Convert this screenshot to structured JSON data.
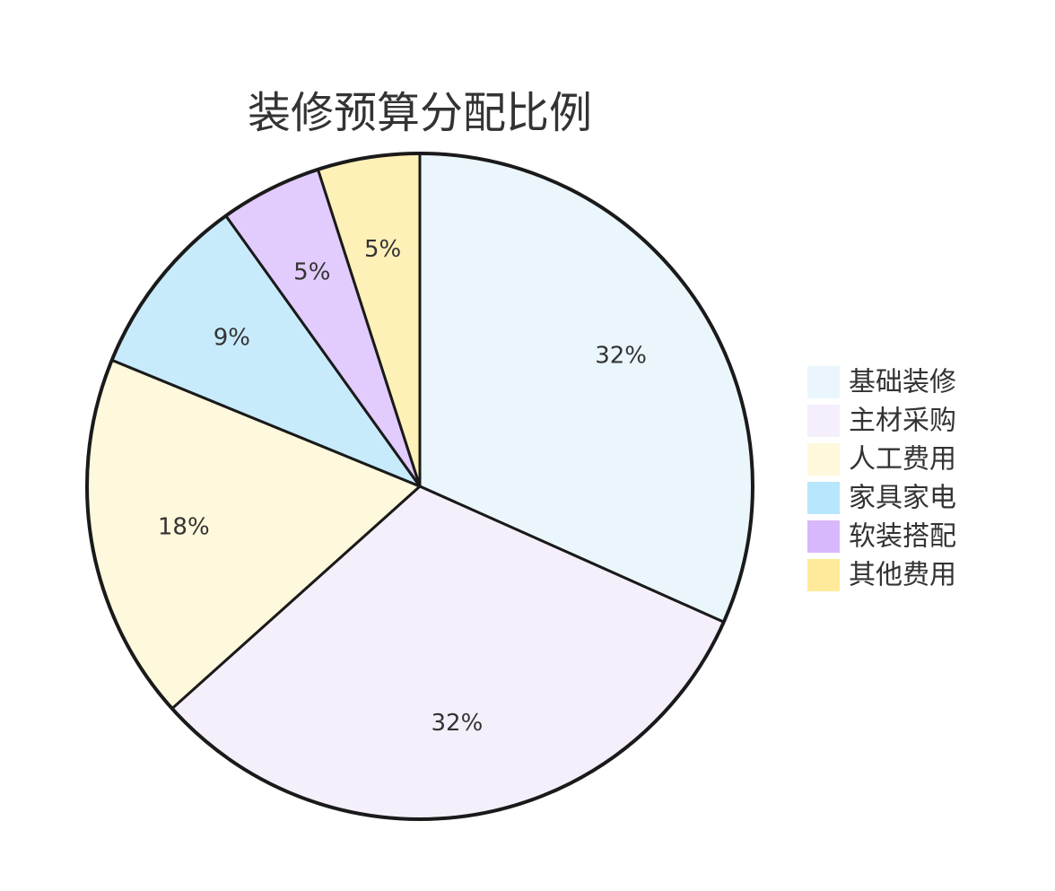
{
  "chart_data": {
    "type": "pie",
    "title": "装修预算分配比例",
    "legend_position": "right",
    "start_angle": "top",
    "direction": "clockwise",
    "slices": [
      {
        "name": "基础装修",
        "value": 32,
        "label": "32%",
        "color": "#EAF6FC"
      },
      {
        "name": "主材采购",
        "value": 32,
        "label": "32%",
        "color": "#F5EFFC"
      },
      {
        "name": "人工费用",
        "value": 18,
        "label": "18%",
        "color": "#FEF8DC"
      },
      {
        "name": "家具家电",
        "value": 9,
        "label": "9%",
        "color": "#C8EBFC"
      },
      {
        "name": "软装搭配",
        "value": 5,
        "label": "5%",
        "color": "#E2CBFD"
      },
      {
        "name": "其他费用",
        "value": 5,
        "label": "5%",
        "color": "#FEF1B8"
      }
    ],
    "legend_colors": [
      "#EAF6FC",
      "#F5EFFC",
      "#FEF8DC",
      "#B8E6FC",
      "#D8B8FD",
      "#FEEA9A"
    ],
    "stroke_color": "#1a1a1a"
  }
}
